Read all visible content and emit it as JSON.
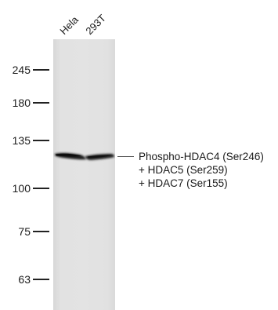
{
  "lanes": [
    {
      "label": "Hela"
    },
    {
      "label": "293T"
    }
  ],
  "markers": [
    {
      "label": "245"
    },
    {
      "label": "180"
    },
    {
      "label": "135"
    },
    {
      "label": "100"
    },
    {
      "label": "75"
    },
    {
      "label": "63"
    }
  ],
  "target": {
    "line1": "Phospho-HDAC4 (Ser246)",
    "line2": "+ HDAC5 (Ser259)",
    "line3": "+ HDAC7 (Ser155)"
  }
}
